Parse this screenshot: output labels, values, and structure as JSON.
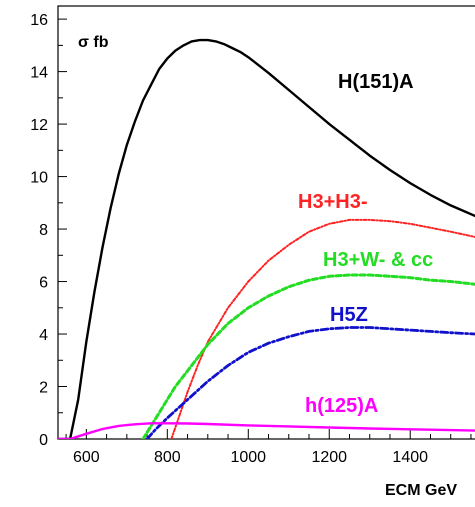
{
  "chart_data": {
    "type": "line",
    "title": "",
    "xlabel": "ECM GeV",
    "ylabel": "σ fb",
    "xlim": [
      530,
      1560
    ],
    "ylim": [
      0,
      16.5
    ],
    "x_ticks": [
      600,
      800,
      1000,
      1200,
      1400
    ],
    "y_ticks": [
      0,
      2,
      4,
      6,
      8,
      10,
      12,
      14,
      16
    ],
    "grid": false,
    "legend": "none",
    "series": [
      {
        "label": "H(151)A",
        "color": "#000000",
        "style": "solid",
        "x": [
          530,
          560,
          580,
          600,
          620,
          640,
          660,
          680,
          700,
          720,
          740,
          760,
          780,
          800,
          820,
          840,
          860,
          880,
          900,
          920,
          940,
          960,
          980,
          1000,
          1050,
          1100,
          1150,
          1200,
          1250,
          1300,
          1350,
          1400,
          1450,
          1500,
          1560
        ],
        "y": [
          0.0,
          0.0,
          1.5,
          3.7,
          5.6,
          7.3,
          8.8,
          10.1,
          11.2,
          12.1,
          12.9,
          13.5,
          14.1,
          14.5,
          14.8,
          15.0,
          15.15,
          15.2,
          15.2,
          15.15,
          15.05,
          14.9,
          14.75,
          14.55,
          13.95,
          13.3,
          12.65,
          12.0,
          11.4,
          10.8,
          10.25,
          9.75,
          9.3,
          8.9,
          8.5
        ]
      },
      {
        "label": "H3+H3-",
        "color": "#ff2222",
        "style": "dashdot-fine",
        "x": [
          810,
          830,
          850,
          875,
          900,
          950,
          1000,
          1050,
          1100,
          1150,
          1200,
          1250,
          1300,
          1350,
          1400,
          1450,
          1500,
          1560
        ],
        "y": [
          0.0,
          0.9,
          1.8,
          2.8,
          3.7,
          5.0,
          6.0,
          6.8,
          7.4,
          7.9,
          8.2,
          8.35,
          8.35,
          8.3,
          8.2,
          8.05,
          7.9,
          7.7
        ]
      },
      {
        "label": "H3+W- & cc",
        "color": "#22dd22",
        "style": "dashed",
        "x": [
          740,
          760,
          780,
          800,
          820,
          850,
          900,
          950,
          1000,
          1050,
          1100,
          1150,
          1200,
          1250,
          1300,
          1350,
          1400,
          1450,
          1500,
          1560
        ],
        "y": [
          0.0,
          0.5,
          1.0,
          1.5,
          2.0,
          2.6,
          3.6,
          4.4,
          5.0,
          5.45,
          5.8,
          6.05,
          6.2,
          6.25,
          6.25,
          6.2,
          6.15,
          6.05,
          6.0,
          5.9
        ]
      },
      {
        "label": "H5Z",
        "color": "#1111cc",
        "style": "dashdot",
        "x": [
          750,
          770,
          800,
          850,
          900,
          950,
          1000,
          1050,
          1100,
          1150,
          1200,
          1250,
          1300,
          1350,
          1400,
          1450,
          1500,
          1560
        ],
        "y": [
          0.0,
          0.35,
          0.8,
          1.5,
          2.2,
          2.8,
          3.3,
          3.65,
          3.9,
          4.1,
          4.2,
          4.25,
          4.25,
          4.2,
          4.15,
          4.1,
          4.05,
          4.0
        ]
      },
      {
        "label": "h(125)A",
        "color": "#ff00ff",
        "style": "solid",
        "x": [
          530,
          560,
          600,
          640,
          680,
          720,
          760,
          800,
          850,
          900,
          1000,
          1100,
          1200,
          1300,
          1400,
          1500,
          1560
        ],
        "y": [
          0.0,
          0.0,
          0.2,
          0.38,
          0.5,
          0.56,
          0.6,
          0.6,
          0.59,
          0.57,
          0.52,
          0.48,
          0.44,
          0.4,
          0.37,
          0.34,
          0.32
        ]
      }
    ]
  }
}
